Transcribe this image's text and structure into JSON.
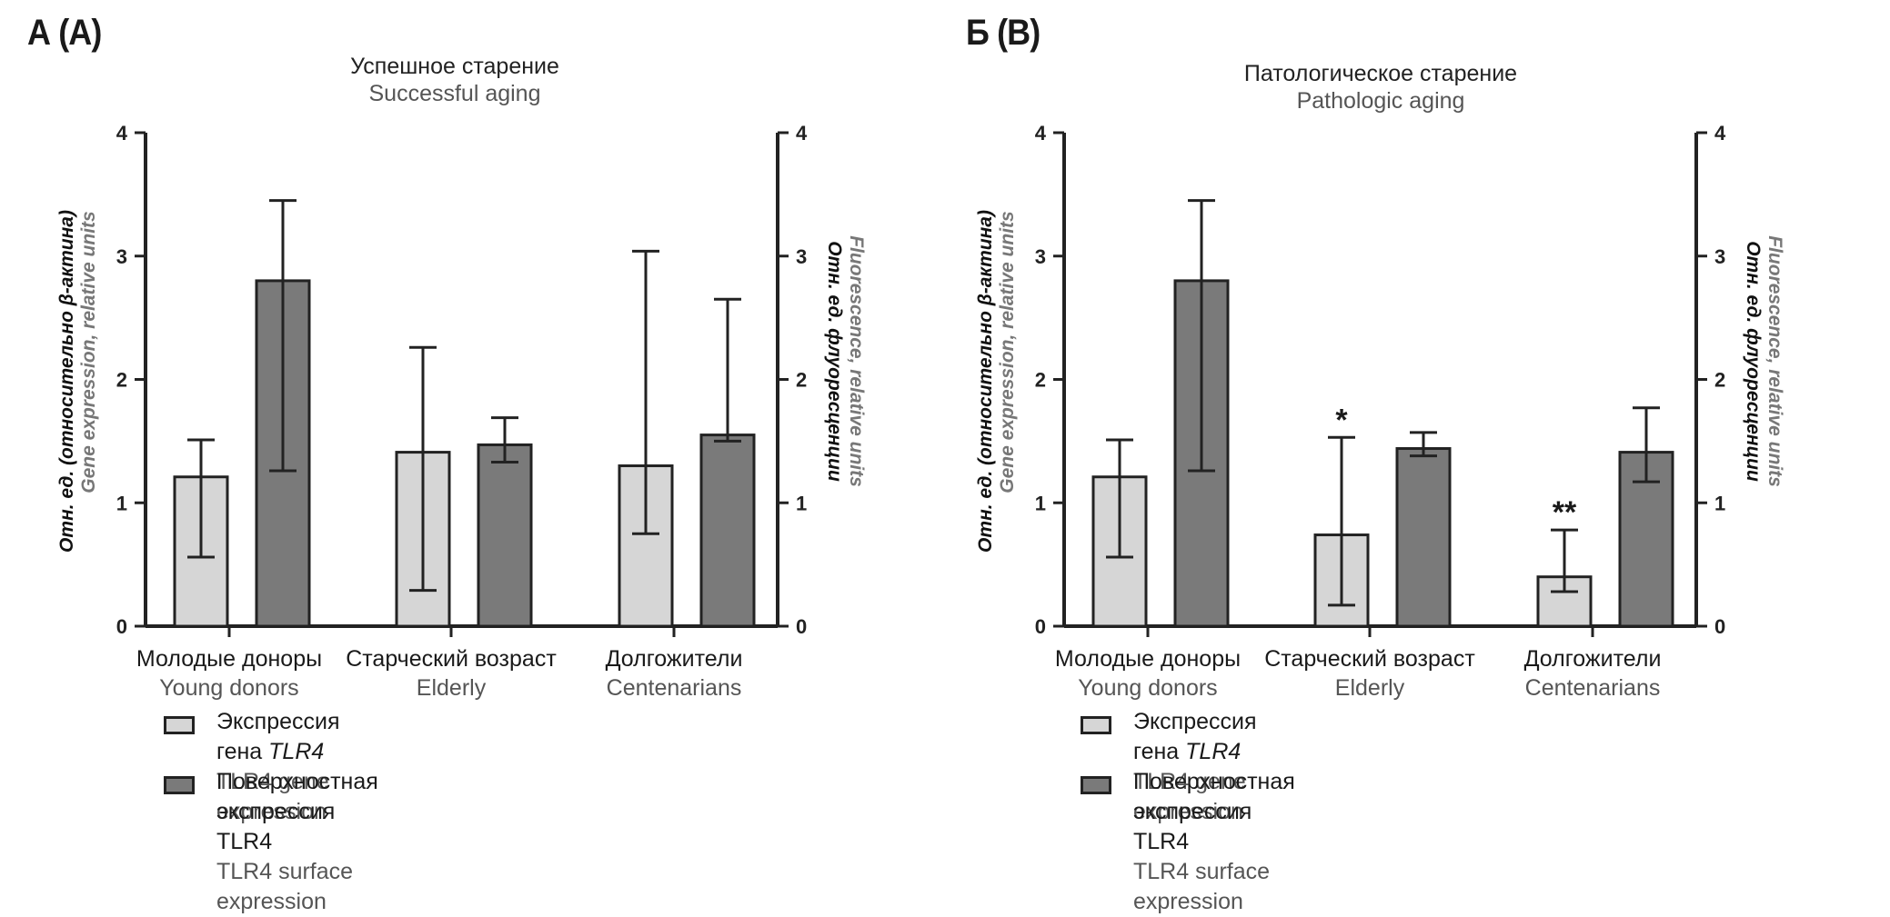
{
  "figure": {
    "panels": [
      {
        "letter": "А (A)",
        "title_ru": "Успешное старение",
        "title_en": "Successful aging",
        "legend": [
          {
            "ru": "Экспрессия гена ",
            "ru_em": "TLR4",
            "en": "TLR4 gene expression",
            "color": "#d6d6d6"
          },
          {
            "ru": "Поверхностная экспрессия TLR4",
            "ru_em": "",
            "en": "TLR4 surface expression",
            "color": "#7a7a7a"
          }
        ]
      },
      {
        "letter": "Б (B)",
        "title_ru": "Патологическое старение",
        "title_en": "Pathologic aging",
        "legend": [
          {
            "ru": "Экспрессия гена ",
            "ru_em": "TLR4",
            "en": "TLR4 gene expression",
            "color": "#d6d6d6"
          },
          {
            "ru": "Поверхностная экспрессия TLR4",
            "ru_em": "",
            "en": "TLR4 surface expression",
            "color": "#7a7a7a"
          }
        ]
      }
    ]
  },
  "chart_data": [
    {
      "type": "bar",
      "title": "Успешное старение / Successful aging",
      "categories": [
        {
          "ru": "Молодые доноры",
          "en": "Young donors"
        },
        {
          "ru": "Старческий возраст",
          "en": "Elderly"
        },
        {
          "ru": "Долгожители",
          "en": "Centenarians"
        }
      ],
      "series": [
        {
          "name": "Экспрессия гена TLR4 / TLR4 gene expression",
          "axis": "left",
          "color": "#d6d6d6",
          "values": [
            1.21,
            1.41,
            1.3
          ],
          "err_low": [
            0.56,
            0.29,
            0.75
          ],
          "err_high": [
            1.51,
            2.26,
            3.04
          ],
          "annotations": [
            "",
            "",
            ""
          ]
        },
        {
          "name": "Поверхностная экспрессия TLR4 / TLR4 surface expression",
          "axis": "right",
          "color": "#7a7a7a",
          "values": [
            2.8,
            1.47,
            1.55
          ],
          "err_low": [
            1.26,
            1.33,
            1.5
          ],
          "err_high": [
            3.45,
            1.69,
            2.65
          ],
          "annotations": [
            "",
            "",
            ""
          ]
        }
      ],
      "ylabel_left": {
        "ru": "Отн. ед. (относительно β-актина)",
        "en": "Gene expression, relative units"
      },
      "ylabel_right": {
        "ru": "Отн. ед. флуоресценции",
        "en": "Fluorescence, relative units"
      },
      "ylim": [
        0,
        4
      ],
      "yticks": [
        0,
        1,
        2,
        3,
        4
      ]
    },
    {
      "type": "bar",
      "title": "Патологическое старение / Pathologic aging",
      "categories": [
        {
          "ru": "Молодые доноры",
          "en": "Young donors"
        },
        {
          "ru": "Старческий возраст",
          "en": "Elderly"
        },
        {
          "ru": "Долгожители",
          "en": "Centenarians"
        }
      ],
      "series": [
        {
          "name": "Экспрессия гена TLR4 / TLR4 gene expression",
          "axis": "left",
          "color": "#d6d6d6",
          "values": [
            1.21,
            0.74,
            0.4
          ],
          "err_low": [
            0.56,
            0.17,
            0.28
          ],
          "err_high": [
            1.51,
            1.53,
            0.78
          ],
          "annotations": [
            "",
            "*",
            "**"
          ]
        },
        {
          "name": "Поверхностная экспрессия TLR4 / TLR4 surface expression",
          "axis": "right",
          "color": "#7a7a7a",
          "values": [
            2.8,
            1.44,
            1.41
          ],
          "err_low": [
            1.26,
            1.38,
            1.17
          ],
          "err_high": [
            3.45,
            1.57,
            1.77
          ],
          "annotations": [
            "",
            "",
            ""
          ]
        }
      ],
      "ylabel_left": {
        "ru": "Отн. ед. (относительно β-актина)",
        "en": "Gene expression, relative units"
      },
      "ylabel_right": {
        "ru": "Отн. ед. флуоресценции",
        "en": "Fluorescence, relative units"
      },
      "ylim": [
        0,
        4
      ],
      "yticks": [
        0,
        1,
        2,
        3,
        4
      ]
    }
  ]
}
